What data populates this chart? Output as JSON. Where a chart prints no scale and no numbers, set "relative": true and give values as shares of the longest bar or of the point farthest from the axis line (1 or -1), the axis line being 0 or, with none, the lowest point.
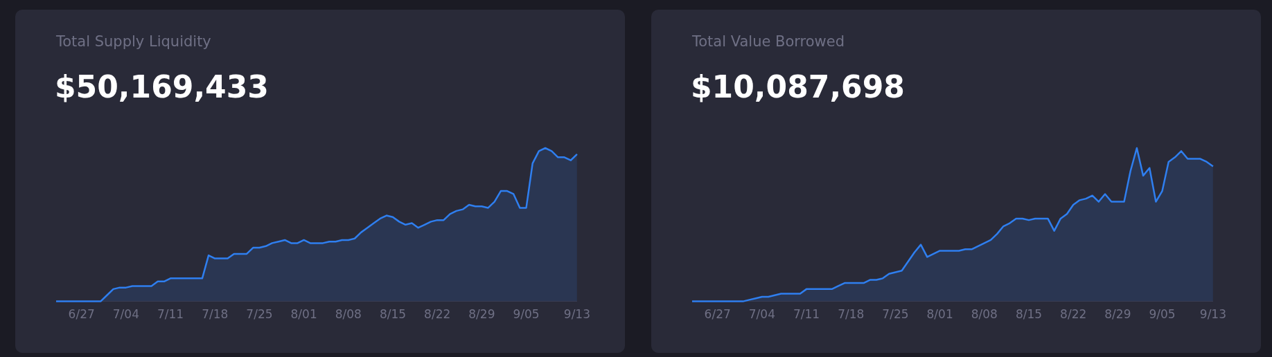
{
  "chart_data": [
    {
      "type": "area",
      "title": "Total Supply Liquidity",
      "subtitle": "$50,169,433",
      "relative": true,
      "tick_labels": "x",
      "categories": [
        null,
        null,
        null,
        null,
        "6/27",
        null,
        null,
        null,
        null,
        null,
        null,
        "7/04",
        null,
        null,
        null,
        null,
        null,
        null,
        "7/11",
        null,
        null,
        null,
        null,
        null,
        null,
        "7/18",
        null,
        null,
        null,
        null,
        null,
        null,
        "7/25",
        null,
        null,
        null,
        null,
        null,
        null,
        "8/01",
        null,
        null,
        null,
        null,
        null,
        null,
        "8/08",
        null,
        null,
        null,
        null,
        null,
        null,
        "8/15",
        null,
        null,
        null,
        null,
        null,
        null,
        "8/22",
        null,
        null,
        null,
        null,
        null,
        null,
        "8/29",
        null,
        null,
        null,
        null,
        null,
        null,
        "9/05",
        null,
        null,
        null,
        null,
        null,
        null,
        null,
        "9/13"
      ],
      "series": [
        {
          "color": "#2f7ff0",
          "values": [
            0,
            0,
            0,
            0,
            0,
            0,
            0,
            0,
            0.04,
            0.08,
            0.09,
            0.09,
            0.1,
            0.1,
            0.1,
            0.1,
            0.13,
            0.13,
            0.15,
            0.15,
            0.15,
            0.15,
            0.15,
            0.15,
            0.3,
            0.28,
            0.28,
            0.28,
            0.31,
            0.31,
            0.31,
            0.35,
            0.35,
            0.36,
            0.38,
            0.39,
            0.4,
            0.38,
            0.38,
            0.4,
            0.38,
            0.38,
            0.38,
            0.39,
            0.39,
            0.4,
            0.4,
            0.41,
            0.45,
            0.48,
            0.51,
            0.54,
            0.56,
            0.55,
            0.52,
            0.5,
            0.51,
            0.48,
            0.5,
            0.52,
            0.53,
            0.53,
            0.57,
            0.59,
            0.6,
            0.63,
            0.62,
            0.62,
            0.61,
            0.65,
            0.72,
            0.72,
            0.7,
            0.61,
            0.61,
            0.9,
            0.98,
            1,
            0.98,
            0.94,
            0.94,
            0.92,
            0.96
          ]
        }
      ]
    },
    {
      "type": "area",
      "title": "Total Value Borrowed",
      "subtitle": "$10,087,698",
      "relative": true,
      "tick_labels": "x",
      "categories": [
        null,
        null,
        null,
        null,
        "6/27",
        null,
        null,
        null,
        null,
        null,
        null,
        "7/04",
        null,
        null,
        null,
        null,
        null,
        null,
        "7/11",
        null,
        null,
        null,
        null,
        null,
        null,
        "7/18",
        null,
        null,
        null,
        null,
        null,
        null,
        "7/25",
        null,
        null,
        null,
        null,
        null,
        null,
        "8/01",
        null,
        null,
        null,
        null,
        null,
        null,
        "8/08",
        null,
        null,
        null,
        null,
        null,
        null,
        "8/15",
        null,
        null,
        null,
        null,
        null,
        null,
        "8/22",
        null,
        null,
        null,
        null,
        null,
        null,
        "8/29",
        null,
        null,
        null,
        null,
        null,
        null,
        "9/05",
        null,
        null,
        null,
        null,
        null,
        null,
        null,
        "9/13"
      ],
      "series": [
        {
          "color": "#2f7ff0",
          "values": [
            0,
            0,
            0,
            0,
            0,
            0,
            0,
            0,
            0,
            0.01,
            0.02,
            0.03,
            0.03,
            0.04,
            0.05,
            0.05,
            0.05,
            0.05,
            0.08,
            0.08,
            0.08,
            0.08,
            0.08,
            0.1,
            0.12,
            0.12,
            0.12,
            0.12,
            0.14,
            0.14,
            0.15,
            0.18,
            0.19,
            0.2,
            0.26,
            0.32,
            0.37,
            0.29,
            0.31,
            0.33,
            0.33,
            0.33,
            0.33,
            0.34,
            0.34,
            0.36,
            0.38,
            0.4,
            0.44,
            0.49,
            0.51,
            0.54,
            0.54,
            0.53,
            0.54,
            0.54,
            0.54,
            0.46,
            0.54,
            0.57,
            0.63,
            0.66,
            0.67,
            0.69,
            0.65,
            0.7,
            0.65,
            0.65,
            0.65,
            0.85,
            1,
            0.82,
            0.87,
            0.65,
            0.72,
            0.91,
            0.94,
            0.98,
            0.93,
            0.93,
            0.93,
            0.91,
            0.88
          ]
        }
      ]
    }
  ]
}
